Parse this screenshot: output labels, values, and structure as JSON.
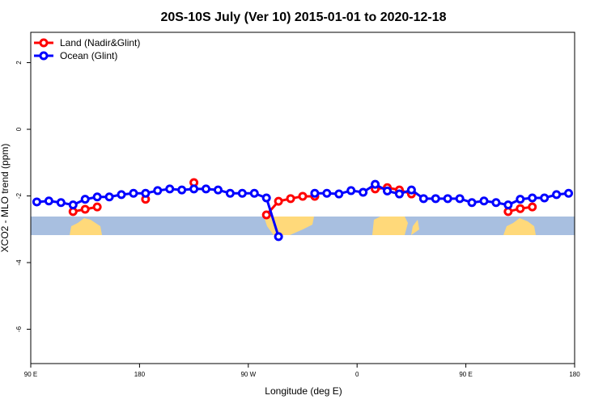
{
  "chart_data": {
    "type": "line",
    "title": "20S-10S July (Ver 10)   2015-01-01 to 2020-12-18",
    "x_label": "Longitude (deg E)",
    "y_label": "XCO2 - MLO trend (ppm)",
    "x": [
      95,
      105,
      115,
      125,
      135,
      145,
      155,
      165,
      175,
      185,
      195,
      205,
      215,
      225,
      235,
      245,
      255,
      265,
      275,
      285,
      295,
      305,
      315,
      325,
      335,
      345,
      355,
      365,
      375,
      385,
      395,
      405,
      415,
      425,
      435,
      445,
      455,
      465,
      475,
      485,
      495,
      505,
      515,
      525,
      535
    ],
    "series": [
      {
        "name": "Land (Nadir&Glint)",
        "color": "#ff0000",
        "values": [
          null,
          null,
          null,
          -2.47,
          -2.4,
          -2.33,
          null,
          null,
          null,
          -2.1,
          null,
          null,
          null,
          -1.6,
          null,
          null,
          null,
          null,
          null,
          -2.57,
          -2.16,
          -2.08,
          -2.01,
          -2.01,
          null,
          null,
          null,
          null,
          -1.79,
          -1.75,
          -1.82,
          -1.94,
          null,
          null,
          null,
          null,
          null,
          null,
          null,
          -2.47,
          -2.38,
          -2.33,
          null,
          null,
          null
        ]
      },
      {
        "name": "Ocean (Glint)",
        "color": "#0000ff",
        "values": [
          -2.18,
          -2.15,
          -2.2,
          -2.27,
          -2.1,
          -2.03,
          -2.03,
          -1.96,
          -1.92,
          -1.92,
          -1.84,
          -1.79,
          -1.82,
          -1.79,
          -1.79,
          -1.82,
          -1.92,
          -1.92,
          -1.92,
          -2.06,
          -3.22,
          null,
          null,
          -1.92,
          -1.92,
          -1.94,
          -1.84,
          -1.89,
          -1.65,
          -1.85,
          -1.94,
          -1.82,
          -2.08,
          -2.08,
          -2.08,
          -2.08,
          -2.2,
          -2.15,
          -2.2,
          -2.27,
          -2.1,
          -2.06,
          -2.06,
          -1.96,
          -1.92
        ]
      }
    ],
    "xlim": [
      90,
      540
    ],
    "xticks": [
      {
        "value": 90,
        "label": "90 E"
      },
      180,
      {
        "value": 270,
        "label": "90 W"
      },
      {
        "value": 360,
        "label": "0"
      },
      {
        "value": 450,
        "label": "90 E"
      },
      {
        "value": 540,
        "label": "180"
      }
    ],
    "ylim": [
      -7.03,
      2.91
    ],
    "yticks": [
      2,
      0,
      -2,
      -4,
      -6
    ],
    "legend": "top-left"
  }
}
